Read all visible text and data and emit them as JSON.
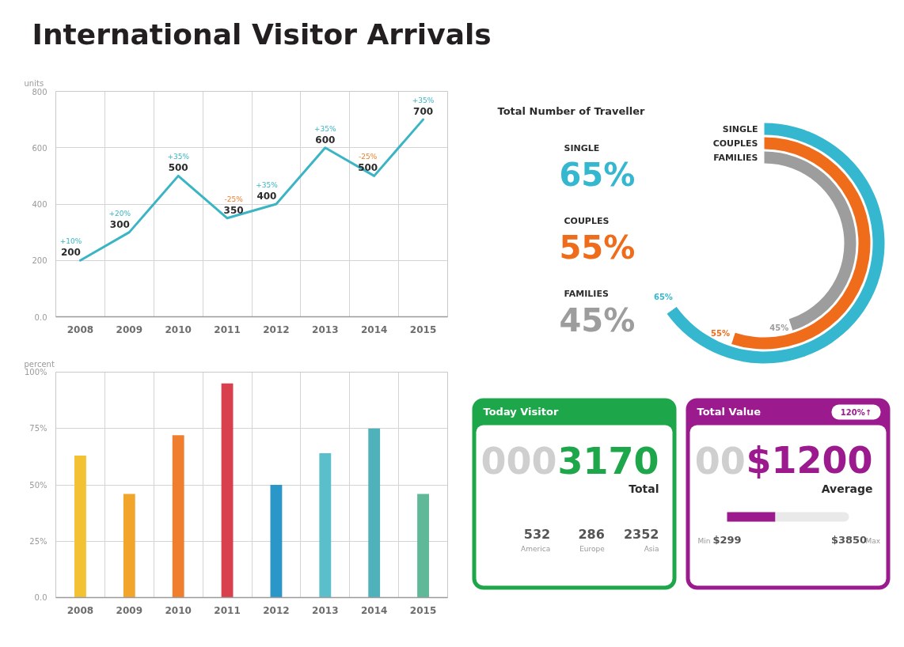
{
  "chart_data": [
    {
      "type": "line",
      "title": "International Visitor Arrivals",
      "ylabel": "units",
      "categories": [
        "2008",
        "2009",
        "2010",
        "2011",
        "2012",
        "2013",
        "2014",
        "2015"
      ],
      "series": [
        {
          "color": "#3bb5c4",
          "values": [
            200,
            300,
            500,
            350,
            400,
            600,
            500,
            700
          ]
        }
      ],
      "ylim": [
        0,
        800
      ],
      "yticks": [
        {
          "value": 0,
          "label": "0.0"
        },
        200,
        400,
        600,
        800
      ],
      "grid": true,
      "data_labels": true,
      "annotations": [
        {
          "text": "+10%",
          "x": "2008",
          "y": 200
        },
        {
          "text": "+20%",
          "x": "2009",
          "y": 300
        },
        {
          "text": "+35%",
          "x": "2010",
          "y": 500
        },
        {
          "text": "-25%",
          "x": "2011",
          "y": 350
        },
        {
          "text": "+35%",
          "x": "2012",
          "y": 400
        },
        {
          "text": "+35%",
          "x": "2013",
          "y": 600
        },
        {
          "text": "-25%",
          "x": "2014",
          "y": 500
        },
        {
          "text": "+35%",
          "x": "2015",
          "y": 700
        }
      ]
    },
    {
      "type": "bar",
      "ylabel": "percent",
      "categories": [
        "2008",
        "2009",
        "2010",
        "2011",
        "2012",
        "2013",
        "2014",
        "2015"
      ],
      "values": [
        63,
        46,
        72,
        95,
        50,
        64,
        75,
        46
      ],
      "colors": [
        "#f3c233",
        "#f2a52b",
        "#ef7e2f",
        "#d8404d",
        "#2b97c9",
        "#5bbfcb",
        "#4fb2ba",
        "#5fb898"
      ],
      "ylim": [
        0,
        100
      ],
      "yticks": [
        {
          "value": 0,
          "label": "0.0"
        },
        {
          "value": 25,
          "label": "25%"
        },
        {
          "value": 50,
          "label": "50%"
        },
        {
          "value": 75,
          "label": "75%"
        },
        {
          "value": 100,
          "label": "100%"
        }
      ],
      "grid": true
    },
    {
      "type": "other",
      "title": "Total Number of Traveller",
      "categories": [
        "SINGLE",
        "COUPLES",
        "FAMILIES"
      ],
      "values": [
        65,
        55,
        45
      ],
      "colors": [
        "#35b8cf",
        "#ef6c1a",
        "#9d9d9d"
      ],
      "value_labels": [
        "65%",
        "55%",
        "45%"
      ]
    },
    {
      "type": "other",
      "title": "Today Visitor",
      "color": "#1ea64a",
      "annotations": [
        "000",
        "3170",
        "Total",
        "532",
        "America",
        "286",
        "Europe",
        "2352",
        "Asia"
      ]
    },
    {
      "type": "bar",
      "orientation": "horizontal",
      "title": "Total Value",
      "color": "#9b1a8e",
      "values": [
        1700
      ],
      "xlim": [
        299,
        3850
      ],
      "xticks": [
        {
          "value": 299,
          "label": "$299"
        },
        {
          "value": 3850,
          "label": "$3850"
        }
      ],
      "annotations": [
        "120%↑",
        "00",
        "$1200",
        "Average",
        "Min",
        "Max"
      ]
    }
  ]
}
